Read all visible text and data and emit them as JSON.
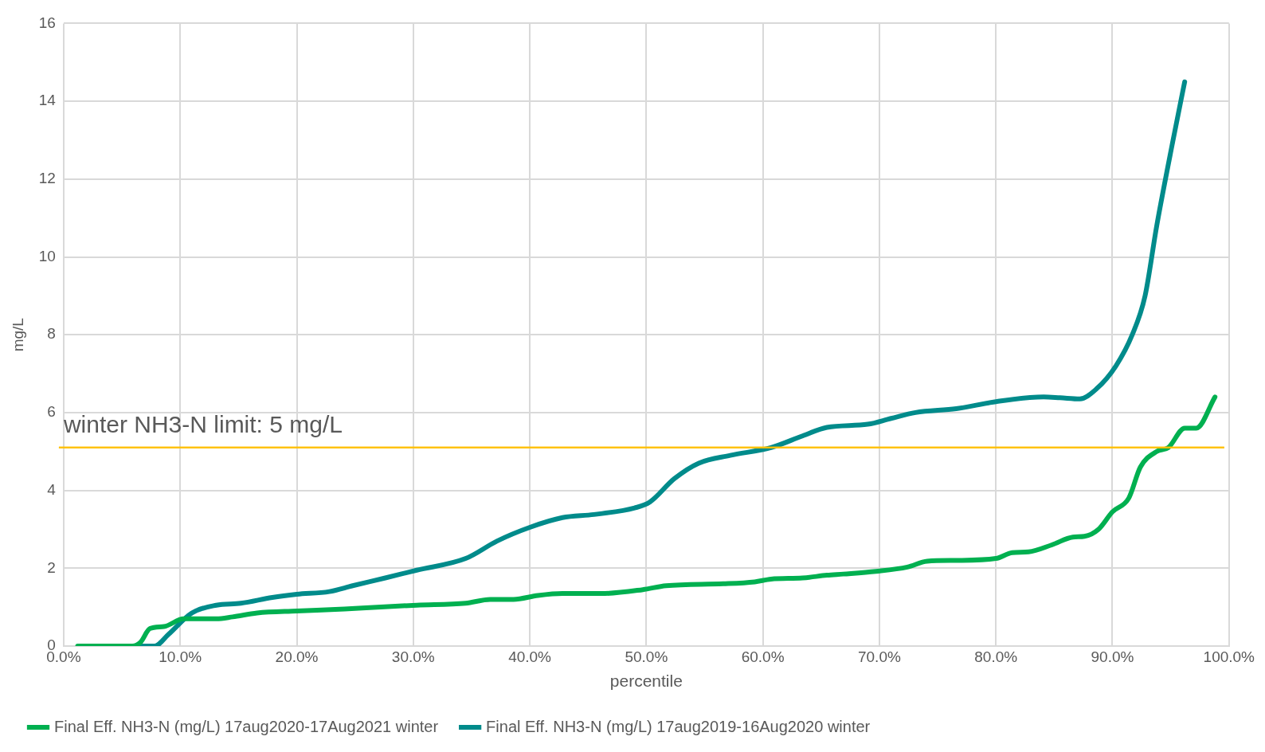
{
  "chart_data": {
    "type": "line",
    "xlabel": "percentile",
    "ylabel": "mg/L",
    "xlim": [
      0,
      100
    ],
    "xticks": [
      {
        "value": 0,
        "label": "0.0%"
      },
      {
        "value": 10,
        "label": "10.0%"
      },
      {
        "value": 20,
        "label": "20.0%"
      },
      {
        "value": 30,
        "label": "30.0%"
      },
      {
        "value": 40,
        "label": "40.0%"
      },
      {
        "value": 50,
        "label": "50.0%"
      },
      {
        "value": 60,
        "label": "60.0%"
      },
      {
        "value": 70,
        "label": "70.0%"
      },
      {
        "value": 80,
        "label": "80.0%"
      },
      {
        "value": 90,
        "label": "90.0%"
      },
      {
        "value": 100,
        "label": "100.0%"
      }
    ],
    "ylim": [
      0,
      16
    ],
    "yticks": [
      0,
      2,
      4,
      6,
      8,
      10,
      12,
      14,
      16
    ],
    "grid": true,
    "legend": "bottom",
    "marker": "none",
    "line_style": "solid",
    "series": [
      {
        "name": "Final Eff. NH3-N (mg/L) 17aug2020-17Aug2021 winter",
        "color": "#00b050",
        "x": [
          1.2,
          3.7,
          5.9,
          6.6,
          7.4,
          8.6,
          10.3,
          13.1,
          14.5,
          16.6,
          20,
          24.1,
          26.9,
          30.3,
          34.5,
          36.6,
          38.6,
          40.7,
          42.8,
          46.2,
          49.7,
          51.7,
          56.6,
          59.3,
          60.7,
          63.4,
          65.5,
          66.9,
          69.7,
          72.4,
          74.1,
          76.6,
          80,
          81.4,
          82.8,
          84.8,
          86.6,
          87.6,
          88.8,
          90,
          91.4,
          92.4,
          93.8,
          94.8,
          96.2,
          97.2,
          98.8
        ],
        "values": [
          0,
          0,
          0,
          0.1,
          0.45,
          0.5,
          0.7,
          0.7,
          0.75,
          0.85,
          0.9,
          0.95,
          1.0,
          1.05,
          1.1,
          1.2,
          1.2,
          1.3,
          1.35,
          1.35,
          1.45,
          1.55,
          1.6,
          1.65,
          1.72,
          1.75,
          1.82,
          1.85,
          1.92,
          2.03,
          2.18,
          2.2,
          2.25,
          2.4,
          2.42,
          2.6,
          2.8,
          2.82,
          3.0,
          3.45,
          3.8,
          4.6,
          5.0,
          5.1,
          5.6,
          5.6,
          6.4
        ]
      },
      {
        "name": "Final Eff. NH3-N (mg/L) 17aug2019-16Aug2020 winter",
        "color": "#008b8b",
        "x": [
          3.7,
          5.5,
          7.8,
          9,
          11,
          13.1,
          15.2,
          17.9,
          20,
          22.8,
          24.8,
          27.6,
          30.3,
          34.5,
          37.2,
          40,
          42.8,
          45.5,
          49,
          50.3,
          52.4,
          54.5,
          57.2,
          60.7,
          63.4,
          65.5,
          69,
          71,
          73.1,
          76.6,
          80,
          84.1,
          85.5,
          87.2,
          88.6,
          90.3,
          91.7,
          92.8,
          93.8,
          95.2,
          96.2
        ],
        "values": [
          0,
          0,
          0,
          0.3,
          0.85,
          1.05,
          1.1,
          1.25,
          1.33,
          1.4,
          1.55,
          1.75,
          1.95,
          2.25,
          2.7,
          3.05,
          3.3,
          3.38,
          3.55,
          3.7,
          4.3,
          4.7,
          4.9,
          5.1,
          5.4,
          5.62,
          5.7,
          5.85,
          6.0,
          6.1,
          6.28,
          6.4,
          6.38,
          6.35,
          6.6,
          7.2,
          8.0,
          9.0,
          10.8,
          13.0,
          14.5
        ]
      }
    ],
    "ref_lines": [
      {
        "axis": "y",
        "value": 5.1,
        "label": "winter NH3-N limit: 5 mg/L",
        "color": "#ffc000"
      }
    ]
  }
}
